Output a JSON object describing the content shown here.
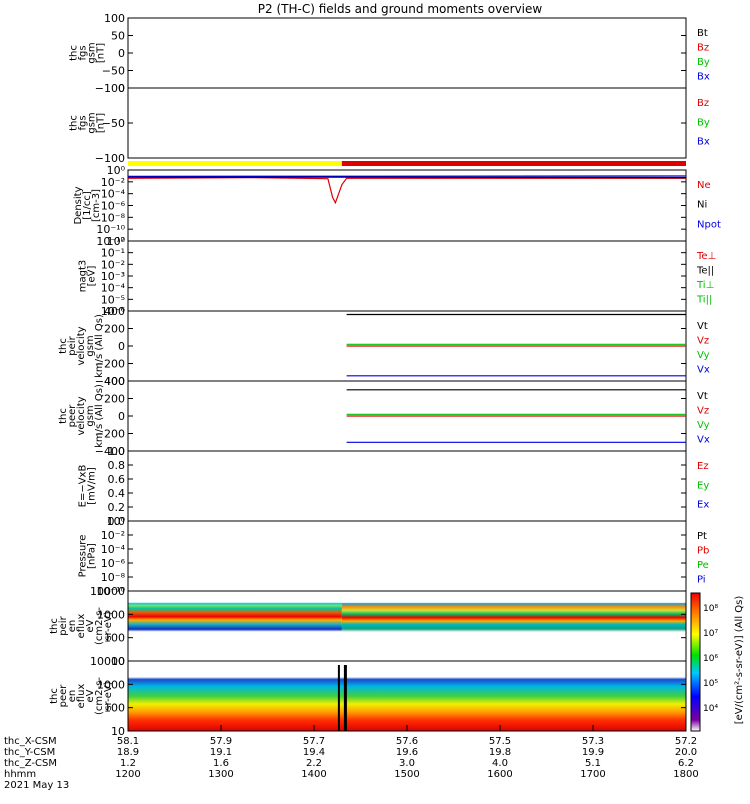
{
  "chart_data": {
    "type": "line",
    "title": "P2 (TH-C) fields and ground moments overview",
    "colors": {
      "black": "#000000",
      "red": "#e00000",
      "green": "#00c000",
      "blue": "#0000e0",
      "yellow": "#ffff00"
    },
    "panels": [
      {
        "id": "fgs",
        "ylabel": [
          "thc",
          "fgs",
          "gsm",
          "[nT]"
        ],
        "yticks": [
          "100",
          "50",
          "0",
          "−50",
          "−100"
        ],
        "ylim": [
          -100,
          100
        ],
        "legend": [
          {
            "text": "Bt",
            "color": "black"
          },
          {
            "text": "Bz",
            "color": "red"
          },
          {
            "text": "By",
            "color": "green"
          },
          {
            "text": "Bx",
            "color": "blue"
          }
        ],
        "series": []
      },
      {
        "id": "fgs_dsl",
        "ylabel": [
          "thc",
          "fgs",
          "gsm",
          "[nT]"
        ],
        "yticks": [
          "0",
          "−50",
          "−100"
        ],
        "ylim": [
          -120,
          0
        ],
        "legend": [
          {
            "text": "Bz",
            "color": "red"
          },
          {
            "text": "By",
            "color": "green"
          },
          {
            "text": "Bx",
            "color": "blue"
          }
        ],
        "series": []
      },
      {
        "id": "density",
        "ylabel": [
          "Density",
          "[1/cc]",
          "[cm-3]"
        ],
        "yticks": [
          "10⁰",
          "10⁻²",
          "10⁻⁴",
          "10⁻⁶",
          "10⁻⁸",
          "10⁻¹⁰",
          "10⁻¹²"
        ],
        "scale": "log",
        "legend": [
          {
            "text": "Ne",
            "color": "red"
          },
          {
            "text": "Ni",
            "color": "black"
          },
          {
            "text": "Npot",
            "color": "blue"
          }
        ],
        "series": [
          {
            "name": "Ne",
            "color": "red",
            "x": [
              1200,
              1330,
              1415,
              1420,
              1423,
              1430,
              1435,
              1800
            ],
            "y": [
              0.3,
              0.4,
              0.25,
              0.0001,
              1e-05,
              0.02,
              0.3,
              0.3
            ]
          },
          {
            "name": "Ni",
            "color": "black",
            "x": [
              1200,
              1430,
              1800
            ],
            "y": [
              0.5,
              0.5,
              0.4
            ]
          },
          {
            "name": "Npot",
            "color": "blue",
            "x": [
              1200,
              1800
            ],
            "y": [
              0.7,
              0.8
            ]
          }
        ]
      },
      {
        "id": "temp",
        "ylabel": [
          "magt3",
          "[eV]"
        ],
        "yticks": [
          "10⁰",
          "10⁻¹",
          "10⁻²",
          "10⁻³",
          "10⁻⁴",
          "10⁻⁵",
          "10⁻⁶"
        ],
        "scale": "log",
        "legend": [
          {
            "text": "Te⊥",
            "color": "red"
          },
          {
            "text": "Te||",
            "color": "black"
          },
          {
            "text": "Ti⊥",
            "color": "green"
          },
          {
            "text": "Ti||",
            "color": "green"
          }
        ],
        "series": []
      },
      {
        "id": "peir_vel",
        "ylabel": [
          "thc",
          "peir",
          "velocity",
          "gsm",
          "km/s (All Qs)"
        ],
        "yticks": [
          "400",
          "200",
          "0",
          "−200",
          "−400"
        ],
        "ylim": [
          -400,
          400
        ],
        "legend": [
          {
            "text": "Vt",
            "color": "black"
          },
          {
            "text": "Vz",
            "color": "red"
          },
          {
            "text": "Vy",
            "color": "green"
          },
          {
            "text": "Vx",
            "color": "blue"
          }
        ],
        "series": [
          {
            "name": "Vt",
            "color": "black",
            "x": [
              1435,
              1800
            ],
            "y": [
              360,
              360
            ]
          },
          {
            "name": "Vz",
            "color": "red",
            "x": [
              1435,
              1800
            ],
            "y": [
              0,
              0
            ]
          },
          {
            "name": "Vy",
            "color": "green",
            "x": [
              1435,
              1800
            ],
            "y": [
              20,
              20
            ]
          },
          {
            "name": "Vx",
            "color": "blue",
            "x": [
              1435,
              1800
            ],
            "y": [
              -340,
              -340
            ]
          }
        ]
      },
      {
        "id": "peer_vel",
        "ylabel": [
          "thc",
          "peer",
          "velocity",
          "gsm",
          "km/s (All Qs)"
        ],
        "yticks": [
          "400",
          "200",
          "0",
          "−200",
          "−400"
        ],
        "ylim": [
          -400,
          400
        ],
        "legend": [
          {
            "text": "Vt",
            "color": "black"
          },
          {
            "text": "Vz",
            "color": "red"
          },
          {
            "text": "Vy",
            "color": "green"
          },
          {
            "text": "Vx",
            "color": "blue"
          }
        ],
        "series": [
          {
            "name": "Vt",
            "color": "black",
            "x": [
              1435,
              1800
            ],
            "y": [
              300,
              300
            ]
          },
          {
            "name": "Vz",
            "color": "red",
            "x": [
              1435,
              1800
            ],
            "y": [
              0,
              0
            ]
          },
          {
            "name": "Vy",
            "color": "green",
            "x": [
              1435,
              1800
            ],
            "y": [
              20,
              20
            ]
          },
          {
            "name": "Vx",
            "color": "blue",
            "x": [
              1435,
              1800
            ],
            "y": [
              -300,
              -300
            ]
          }
        ]
      },
      {
        "id": "efield",
        "ylabel": [
          "E=−VxB",
          "[mV/m]"
        ],
        "yticks": [
          "1.0",
          "0.8",
          "0.6",
          "0.4",
          "0.2",
          "0.0"
        ],
        "ylim": [
          0,
          1
        ],
        "legend": [
          {
            "text": "Ez",
            "color": "red"
          },
          {
            "text": "Ey",
            "color": "green"
          },
          {
            "text": "Ex",
            "color": "blue"
          }
        ],
        "series": []
      },
      {
        "id": "pressure",
        "ylabel": [
          "Pressure",
          "[nPa]"
        ],
        "yticks": [
          "10⁰",
          "10⁻²",
          "10⁻⁴",
          "10⁻⁶",
          "10⁻⁸",
          "10⁻¹⁰"
        ],
        "scale": "log",
        "legend": [
          {
            "text": "Pt",
            "color": "black"
          },
          {
            "text": "Pb",
            "color": "red"
          },
          {
            "text": "Pe",
            "color": "green"
          },
          {
            "text": "Pi",
            "color": "blue"
          }
        ],
        "series": []
      },
      {
        "id": "peir_spec",
        "type": "heatmap",
        "ylabel": [
          "thc",
          "peir",
          "en",
          "eflux",
          "eV",
          "(cm2-s-",
          "sr-eV)"
        ],
        "yticks": [
          "10000",
          "1000",
          "100",
          "10"
        ]
      },
      {
        "id": "peer_spec",
        "type": "heatmap",
        "ylabel": [
          "thc",
          "peer",
          "en",
          "eflux",
          "eV",
          "(cm2-s-",
          "sr-eV)"
        ],
        "yticks": [
          "10000",
          "1000",
          "100",
          "10"
        ]
      }
    ],
    "colorbar": {
      "label": "[eV/(cm²-s-sr-eV)] (All Qs)",
      "ticks": [
        "10⁸",
        "10⁷",
        "10⁶",
        "10⁵",
        "10⁴"
      ]
    },
    "xaxis": {
      "rows": [
        {
          "label": "thc_X-CSM",
          "values": [
            "58.1",
            "57.9",
            "57.7",
            "57.6",
            "57.5",
            "57.3",
            "57.2"
          ]
        },
        {
          "label": "thc_Y-CSM",
          "values": [
            "18.9",
            "19.1",
            "19.4",
            "19.6",
            "19.8",
            "19.9",
            "20.0"
          ]
        },
        {
          "label": "thc_Z-CSM",
          "values": [
            "1.2",
            "1.6",
            "2.2",
            "3.0",
            "4.0",
            "5.1",
            "6.2"
          ]
        },
        {
          "label": "hhmm",
          "values": [
            "1200",
            "1300",
            "1400",
            "1500",
            "1600",
            "1700",
            "1800"
          ]
        }
      ],
      "date": "2021 May 13",
      "range": [
        1200,
        1800
      ]
    },
    "mode_bar": {
      "split": 1430
    }
  }
}
